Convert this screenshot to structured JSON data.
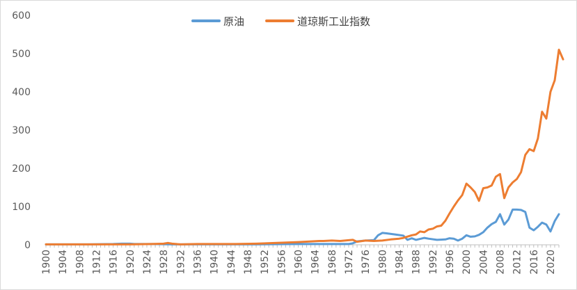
{
  "chart_data": {
    "type": "line",
    "title": "",
    "xlabel": "",
    "ylabel": "",
    "ylim": [
      0,
      600
    ],
    "xlim": [
      1900,
      2022
    ],
    "y_ticks": [
      "0",
      "100",
      "200",
      "300",
      "400",
      "500",
      "600"
    ],
    "x_ticks": [
      "1900",
      "1904",
      "1908",
      "1912",
      "1916",
      "1920",
      "1924",
      "1928",
      "1932",
      "1936",
      "1940",
      "1944",
      "1948",
      "1952",
      "1956",
      "1960",
      "1964",
      "1968",
      "1972",
      "1976",
      "1980",
      "1984",
      "1988",
      "1992",
      "1996",
      "2000",
      "2004",
      "2008",
      "2012",
      "2016",
      "2020"
    ],
    "grid": false,
    "legend_position": "top",
    "series": [
      {
        "name": "原油",
        "color": "#5b9bd5",
        "points": [
          [
            1900,
            1
          ],
          [
            1910,
            1
          ],
          [
            1916,
            2
          ],
          [
            1918,
            3
          ],
          [
            1920,
            3
          ],
          [
            1921,
            2
          ],
          [
            1925,
            2
          ],
          [
            1930,
            1
          ],
          [
            1935,
            1
          ],
          [
            1940,
            1
          ],
          [
            1945,
            1
          ],
          [
            1950,
            1
          ],
          [
            1960,
            2
          ],
          [
            1970,
            2
          ],
          [
            1972,
            2
          ],
          [
            1973,
            4
          ],
          [
            1974,
            9
          ],
          [
            1976,
            11
          ],
          [
            1978,
            12
          ],
          [
            1979,
            25
          ],
          [
            1980,
            31
          ],
          [
            1981,
            30
          ],
          [
            1983,
            27
          ],
          [
            1985,
            24
          ],
          [
            1986,
            13
          ],
          [
            1987,
            17
          ],
          [
            1988,
            13
          ],
          [
            1990,
            18
          ],
          [
            1991,
            16
          ],
          [
            1993,
            13
          ],
          [
            1995,
            14
          ],
          [
            1996,
            17
          ],
          [
            1997,
            16
          ],
          [
            1998,
            11
          ],
          [
            1999,
            16
          ],
          [
            2000,
            25
          ],
          [
            2001,
            21
          ],
          [
            2002,
            22
          ],
          [
            2003,
            26
          ],
          [
            2004,
            33
          ],
          [
            2005,
            45
          ],
          [
            2006,
            54
          ],
          [
            2007,
            60
          ],
          [
            2008,
            80
          ],
          [
            2009,
            53
          ],
          [
            2010,
            66
          ],
          [
            2011,
            92
          ],
          [
            2012,
            92
          ],
          [
            2013,
            91
          ],
          [
            2014,
            86
          ],
          [
            2015,
            45
          ],
          [
            2016,
            38
          ],
          [
            2017,
            47
          ],
          [
            2018,
            58
          ],
          [
            2019,
            53
          ],
          [
            2020,
            35
          ],
          [
            2021,
            62
          ],
          [
            2022,
            80
          ]
        ]
      },
      {
        "name": "道琼斯工业指数",
        "color": "#ed7d31",
        "points": [
          [
            1900,
            1
          ],
          [
            1910,
            1
          ],
          [
            1920,
            1
          ],
          [
            1925,
            2
          ],
          [
            1928,
            3
          ],
          [
            1929,
            5
          ],
          [
            1930,
            3
          ],
          [
            1932,
            1
          ],
          [
            1936,
            2
          ],
          [
            1940,
            2
          ],
          [
            1945,
            2
          ],
          [
            1950,
            3
          ],
          [
            1955,
            5
          ],
          [
            1960,
            7
          ],
          [
            1965,
            10
          ],
          [
            1966,
            10
          ],
          [
            1968,
            11
          ],
          [
            1970,
            10
          ],
          [
            1972,
            12
          ],
          [
            1973,
            13
          ],
          [
            1974,
            8
          ],
          [
            1976,
            11
          ],
          [
            1978,
            10
          ],
          [
            1980,
            11
          ],
          [
            1982,
            14
          ],
          [
            1984,
            16
          ],
          [
            1985,
            18
          ],
          [
            1987,
            25
          ],
          [
            1988,
            27
          ],
          [
            1989,
            35
          ],
          [
            1990,
            33
          ],
          [
            1991,
            40
          ],
          [
            1992,
            42
          ],
          [
            1993,
            48
          ],
          [
            1994,
            50
          ],
          [
            1995,
            63
          ],
          [
            1996,
            82
          ],
          [
            1997,
            100
          ],
          [
            1998,
            116
          ],
          [
            1999,
            130
          ],
          [
            2000,
            160
          ],
          [
            2001,
            150
          ],
          [
            2002,
            138
          ],
          [
            2003,
            115
          ],
          [
            2004,
            148
          ],
          [
            2005,
            150
          ],
          [
            2006,
            155
          ],
          [
            2007,
            178
          ],
          [
            2008,
            185
          ],
          [
            2009,
            122
          ],
          [
            2010,
            150
          ],
          [
            2011,
            163
          ],
          [
            2012,
            172
          ],
          [
            2013,
            190
          ],
          [
            2014,
            235
          ],
          [
            2015,
            250
          ],
          [
            2016,
            245
          ],
          [
            2017,
            278
          ],
          [
            2018,
            348
          ],
          [
            2019,
            330
          ],
          [
            2020,
            400
          ],
          [
            2021,
            430
          ],
          [
            2022,
            510
          ],
          [
            2023,
            485
          ]
        ]
      }
    ]
  }
}
